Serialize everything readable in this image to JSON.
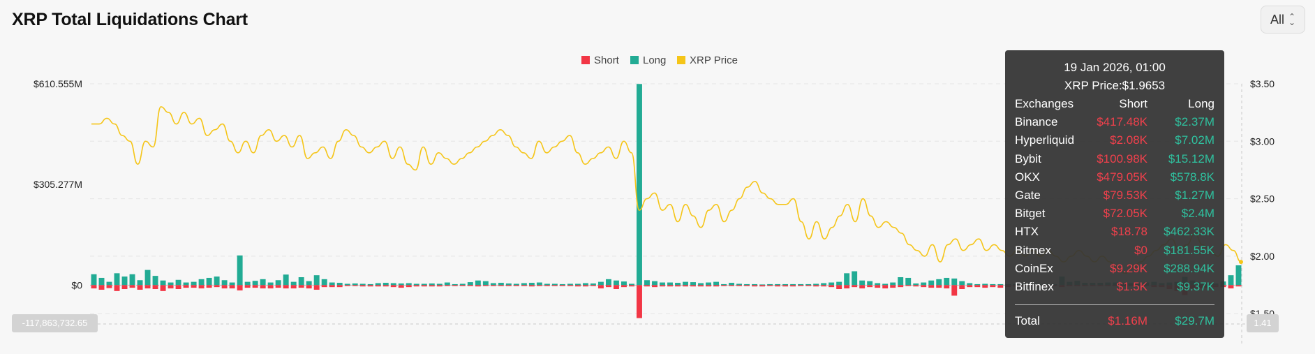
{
  "title": "XRP Total Liquidations Chart",
  "range_select": {
    "value": "All"
  },
  "colors": {
    "short": "#f23645",
    "long": "#22ab94",
    "price": "#f5c518"
  },
  "crosshair": {
    "left_value": "-117,863,732.65",
    "right_value": "1.41"
  },
  "chart_data": {
    "type": "bar",
    "title": "XRP Total Liquidations Chart",
    "legend": {
      "position": "top-center",
      "entries": [
        "Short",
        "Long",
        "XRP Price"
      ]
    },
    "grid": true,
    "left_axis": {
      "min": -117.86,
      "max": 610.555,
      "ticks": [
        {
          "value": 610.555,
          "label": "$610.555M"
        },
        {
          "value": 305.277,
          "label": "$305.277M"
        },
        {
          "value": 0,
          "label": "$0"
        }
      ]
    },
    "right_axis": {
      "min": 1.41,
      "max": 3.5,
      "ticks": [
        {
          "value": 3.5,
          "label": "$3.50"
        },
        {
          "value": 3.0,
          "label": "$3.00"
        },
        {
          "value": 2.5,
          "label": "$2.50"
        },
        {
          "value": 2.0,
          "label": "$2.00"
        },
        {
          "value": 1.5,
          "label": "$1.50"
        }
      ]
    },
    "long_values": [
      33,
      22,
      10,
      36,
      26,
      33,
      15,
      46,
      28,
      14,
      8,
      16,
      8,
      10,
      18,
      22,
      26,
      15,
      8,
      90,
      10,
      13,
      18,
      8,
      15,
      32,
      10,
      24,
      12,
      30,
      18,
      8,
      7,
      4,
      5,
      4,
      3,
      6,
      7,
      6,
      5,
      6,
      4,
      4,
      5,
      4,
      8,
      3,
      4,
      9,
      14,
      12,
      6,
      7,
      5,
      4,
      6,
      7,
      8,
      4,
      4,
      3,
      4,
      4,
      6,
      5,
      10,
      18,
      14,
      11,
      4,
      610,
      15,
      12,
      8,
      8,
      7,
      10,
      9,
      6,
      8,
      10,
      3,
      7,
      4,
      3,
      3,
      2,
      3,
      3,
      3,
      3,
      3,
      3,
      4,
      6,
      8,
      10,
      36,
      42,
      14,
      12,
      6,
      4,
      8,
      24,
      22,
      5,
      8,
      14,
      18,
      22,
      20,
      12,
      6,
      3,
      4,
      3,
      3,
      3,
      3,
      3,
      3,
      3,
      3,
      3,
      26,
      10,
      13,
      7,
      7,
      7,
      8,
      8,
      7,
      6,
      5,
      8,
      10,
      6,
      8,
      10,
      25,
      14,
      8,
      6,
      5,
      11,
      30,
      60
    ],
    "short_values": [
      -10,
      -14,
      -9,
      -18,
      -12,
      -8,
      -14,
      -10,
      -12,
      -18,
      -10,
      -12,
      -8,
      -8,
      -10,
      -8,
      -6,
      -10,
      -10,
      -16,
      -8,
      -8,
      -10,
      -10,
      -8,
      -10,
      -10,
      -8,
      -10,
      -14,
      -6,
      -6,
      -6,
      -3,
      -3,
      -4,
      -4,
      -4,
      -4,
      -6,
      -8,
      -6,
      -4,
      -4,
      -4,
      -4,
      -3,
      -3,
      -3,
      -3,
      -4,
      -3,
      -3,
      -3,
      -3,
      -3,
      -3,
      -4,
      -3,
      -3,
      -3,
      -3,
      -3,
      -4,
      -4,
      -3,
      -10,
      -6,
      -12,
      -6,
      -4,
      -100,
      -4,
      -6,
      -4,
      -4,
      -4,
      -4,
      -4,
      -4,
      -4,
      -4,
      -3,
      -3,
      -3,
      -3,
      -4,
      -4,
      -3,
      -4,
      -4,
      -4,
      -3,
      -3,
      -4,
      -4,
      -6,
      -12,
      -10,
      -6,
      -10,
      -6,
      -8,
      -10,
      -8,
      -6,
      -3,
      -4,
      -6,
      -8,
      -8,
      -10,
      -32,
      -12,
      -6,
      -6,
      -8,
      -6,
      -8,
      -6,
      -4,
      -3,
      -3,
      -3,
      -3,
      -3,
      -6,
      -3,
      -3,
      -3,
      -3,
      -3,
      -3,
      -3,
      -3,
      -3,
      -3,
      -3,
      -6,
      -6,
      -12,
      -18,
      -30,
      -10,
      -10,
      -8,
      -6,
      -6,
      -10,
      -4
    ],
    "price": [
      3.15,
      3.15,
      3.2,
      3.15,
      3.05,
      3.0,
      2.8,
      3.0,
      2.95,
      3.3,
      3.25,
      3.15,
      3.25,
      3.15,
      3.2,
      3.05,
      3.1,
      3.15,
      3.0,
      2.9,
      3.0,
      2.9,
      3.05,
      3.1,
      3.0,
      3.05,
      2.95,
      3.05,
      2.85,
      2.9,
      2.95,
      2.85,
      3.0,
      3.1,
      3.05,
      2.95,
      2.9,
      2.95,
      3.0,
      2.85,
      2.95,
      2.8,
      2.75,
      2.95,
      2.8,
      2.9,
      2.85,
      2.8,
      2.85,
      2.9,
      2.95,
      3.0,
      3.05,
      3.1,
      3.05,
      2.95,
      2.9,
      2.85,
      3.0,
      2.9,
      2.95,
      3.0,
      3.05,
      2.9,
      2.8,
      2.85,
      2.9,
      2.95,
      2.85,
      3.0,
      2.9,
      2.4,
      2.5,
      2.55,
      2.4,
      2.45,
      2.3,
      2.45,
      2.35,
      2.25,
      2.4,
      2.45,
      2.3,
      2.4,
      2.5,
      2.6,
      2.65,
      2.55,
      2.5,
      2.45,
      2.45,
      2.5,
      2.3,
      2.15,
      2.3,
      2.15,
      2.25,
      2.35,
      2.45,
      2.3,
      2.5,
      2.35,
      2.25,
      2.3,
      2.25,
      2.2,
      2.1,
      2.05,
      2.0,
      2.1,
      1.95,
      2.1,
      2.15,
      2.05,
      2.1,
      2.15,
      2.05,
      2.1,
      2.05,
      2.0,
      2.05,
      2.0,
      2.05,
      2.0,
      2.05,
      2.0,
      1.95,
      2.0,
      2.05,
      2.0,
      1.95,
      2.0,
      1.95,
      1.9,
      1.85,
      1.9,
      1.95,
      2.0,
      2.05,
      2.1,
      2.15,
      2.05,
      2.1,
      2.2,
      2.1,
      2.05,
      2.0,
      2.1,
      2.05,
      1.95
    ]
  },
  "tooltip": {
    "date": "19 Jan 2026, 01:00",
    "price": "XRP Price:$1.9653",
    "headers": [
      "Exchanges",
      "Short",
      "Long"
    ],
    "rows": [
      {
        "exchange": "Binance",
        "short": "$417.48K",
        "long": "$2.37M"
      },
      {
        "exchange": "Hyperliquid",
        "short": "$2.08K",
        "long": "$7.02M"
      },
      {
        "exchange": "Bybit",
        "short": "$100.98K",
        "long": "$15.12M"
      },
      {
        "exchange": "OKX",
        "short": "$479.05K",
        "long": "$578.8K"
      },
      {
        "exchange": "Gate",
        "short": "$79.53K",
        "long": "$1.27M"
      },
      {
        "exchange": "Bitget",
        "short": "$72.05K",
        "long": "$2.4M"
      },
      {
        "exchange": "HTX",
        "short": "$18.78",
        "long": "$462.33K"
      },
      {
        "exchange": "Bitmex",
        "short": "$0",
        "long": "$181.55K"
      },
      {
        "exchange": "CoinEx",
        "short": "$9.29K",
        "long": "$288.94K"
      },
      {
        "exchange": "Bitfinex",
        "short": "$1.5K",
        "long": "$9.37K"
      }
    ],
    "total": {
      "label": "Total",
      "short": "$1.16M",
      "long": "$29.7M"
    }
  }
}
